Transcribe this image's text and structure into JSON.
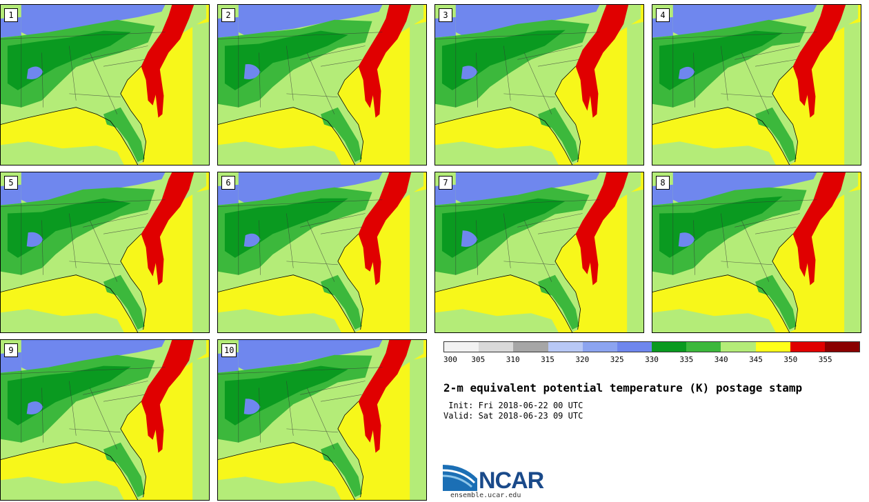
{
  "panels": [
    {
      "label": "1"
    },
    {
      "label": "2"
    },
    {
      "label": "3"
    },
    {
      "label": "4"
    },
    {
      "label": "5"
    },
    {
      "label": "6"
    },
    {
      "label": "7"
    },
    {
      "label": "8"
    },
    {
      "label": "9"
    },
    {
      "label": "10"
    }
  ],
  "colorbar": {
    "ticks": [
      "300",
      "305",
      "310",
      "315",
      "320",
      "325",
      "330",
      "335",
      "340",
      "345",
      "350",
      "355"
    ],
    "colors": [
      "#f2f2f2",
      "#d9d9d9",
      "#a6a6a6",
      "#b8c8f5",
      "#8ca4f0",
      "#6f87ee",
      "#0a9a20",
      "#3cb83c",
      "#b4ec78",
      "#ffff1a",
      "#e00000",
      "#8a0000"
    ]
  },
  "title": "2-m equivalent potential temperature (K) postage stamp",
  "init": " Init: Fri 2018-06-22 00 UTC",
  "valid": "Valid: Sat 2018-06-23 09 UTC",
  "logo": {
    "text": "NCAR",
    "url": "ensemble.ucar.edu"
  }
}
